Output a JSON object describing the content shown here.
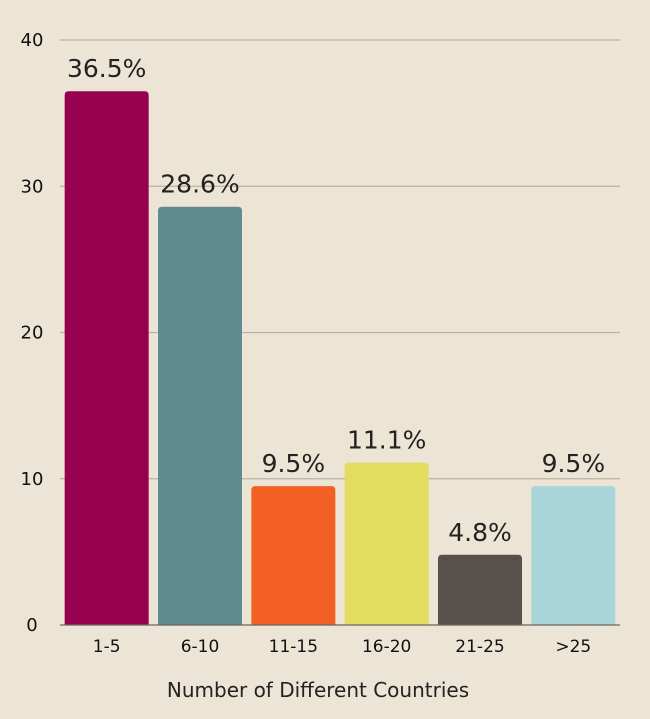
{
  "chart_data": {
    "type": "bar",
    "title": "",
    "xlabel": "Number of Different Countries",
    "ylabel": "",
    "ylim": [
      0,
      40
    ],
    "yticks": [
      0,
      10,
      20,
      30,
      40
    ],
    "grid": true,
    "categories": [
      "1-5",
      "6-10",
      "11-15",
      "16-20",
      "21-25",
      ">25"
    ],
    "values": [
      36.5,
      28.6,
      9.5,
      11.1,
      4.8,
      9.5
    ],
    "data_labels": [
      "36.5%",
      "28.6%",
      "9.5%",
      "11.1%",
      "4.8%",
      "9.5%"
    ],
    "colors": [
      "#96004f",
      "#5f8a8f",
      "#f26023",
      "#e4dc5e",
      "#58504b",
      "#a9d5da"
    ]
  }
}
